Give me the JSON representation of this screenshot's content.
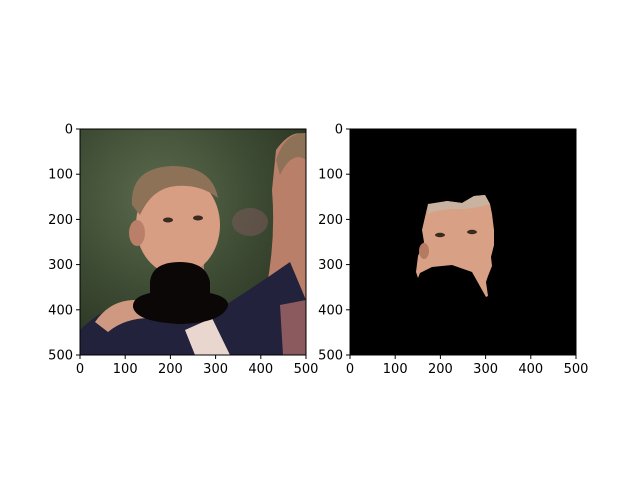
{
  "figure": {
    "background": "#ffffff"
  },
  "chart_data": [
    {
      "type": "image",
      "content": "photo",
      "xlim": [
        0,
        500
      ],
      "ylim": [
        500,
        0
      ],
      "xticks": [
        0,
        100,
        200,
        300,
        400,
        500
      ],
      "yticks": [
        0,
        100,
        200,
        300,
        400,
        500
      ],
      "grid": false,
      "title": "",
      "xlabel": "",
      "ylabel": "",
      "colors": {
        "bg_dark": "#27321f",
        "bg_mid": "#3d4a33",
        "bg_light": "#5b6b4d",
        "skin": "#d79e84",
        "skin_shadow": "#b97f68",
        "hair": "#8e7257",
        "jacket": "#22223c",
        "shirt": "#e9d7cf",
        "hat": "#0b0707",
        "arm": "#cf9880"
      }
    },
    {
      "type": "image",
      "content": "mask",
      "xlim": [
        0,
        500
      ],
      "ylim": [
        500,
        0
      ],
      "xticks": [
        0,
        100,
        200,
        300,
        400,
        500
      ],
      "yticks": [
        0,
        100,
        200,
        300,
        400,
        500
      ],
      "grid": false,
      "title": "",
      "xlabel": "",
      "ylabel": "",
      "colors": {
        "background": "#000000",
        "skin": "#d8a085",
        "skin_shadow": "#b47a62",
        "hair": "#c9b3a0",
        "feature": "#3a2a20"
      }
    }
  ]
}
